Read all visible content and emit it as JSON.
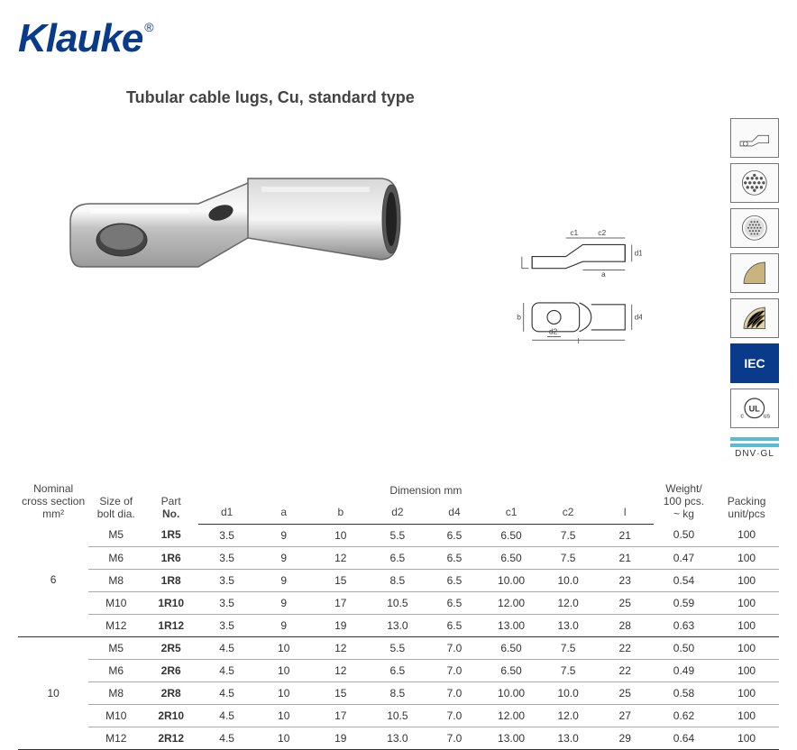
{
  "brand": {
    "name": "Klauke",
    "color": "#0a3a8a"
  },
  "title": "Tubular cable lugs, Cu, standard type",
  "schematics": {
    "side": {
      "labels": {
        "c1": "c1",
        "c2": "c2",
        "a": "a",
        "d1": "d1"
      }
    },
    "top": {
      "labels": {
        "b": "b",
        "d2": "d2",
        "l": "l",
        "d4": "d4"
      }
    }
  },
  "cert_icons": [
    {
      "name": "lug-outline-icon"
    },
    {
      "name": "conductor-stranded-icon"
    },
    {
      "name": "conductor-fine-icon"
    },
    {
      "name": "sector-solid-icon"
    },
    {
      "name": "sector-fine-icon"
    },
    {
      "name": "iec-icon",
      "text": "IEC"
    },
    {
      "name": "ul-icon",
      "left": "c",
      "right": "us",
      "center": "UL"
    },
    {
      "name": "dnv-gl-icon",
      "text": "DNV·GL"
    }
  ],
  "table": {
    "headers": {
      "nominal": [
        "Nominal",
        "cross section",
        "mm²"
      ],
      "bolt": [
        "Size of",
        "bolt dia."
      ],
      "part": [
        "Part",
        "No."
      ],
      "dim_group": "Dimension mm",
      "dims": [
        "d1",
        "a",
        "b",
        "d2",
        "d4",
        "c1",
        "c2",
        "l"
      ],
      "weight": [
        "Weight/",
        "100 pcs.",
        "~ kg"
      ],
      "packing": [
        "Packing",
        "unit/pcs"
      ]
    },
    "groups": [
      {
        "nominal": "6",
        "rows": [
          {
            "bolt": "M5",
            "part": "1R5",
            "d1": "3.5",
            "a": "9",
            "b": "10",
            "d2": "5.5",
            "d4": "6.5",
            "c1": "6.50",
            "c2": "7.5",
            "l": "21",
            "wt": "0.50",
            "pk": "100"
          },
          {
            "bolt": "M6",
            "part": "1R6",
            "d1": "3.5",
            "a": "9",
            "b": "12",
            "d2": "6.5",
            "d4": "6.5",
            "c1": "6.50",
            "c2": "7.5",
            "l": "21",
            "wt": "0.47",
            "pk": "100"
          },
          {
            "bolt": "M8",
            "part": "1R8",
            "d1": "3.5",
            "a": "9",
            "b": "15",
            "d2": "8.5",
            "d4": "6.5",
            "c1": "10.00",
            "c2": "10.0",
            "l": "23",
            "wt": "0.54",
            "pk": "100"
          },
          {
            "bolt": "M10",
            "part": "1R10",
            "d1": "3.5",
            "a": "9",
            "b": "17",
            "d2": "10.5",
            "d4": "6.5",
            "c1": "12.00",
            "c2": "12.0",
            "l": "25",
            "wt": "0.59",
            "pk": "100"
          },
          {
            "bolt": "M12",
            "part": "1R12",
            "d1": "3.5",
            "a": "9",
            "b": "19",
            "d2": "13.0",
            "d4": "6.5",
            "c1": "13.00",
            "c2": "13.0",
            "l": "28",
            "wt": "0.63",
            "pk": "100"
          }
        ]
      },
      {
        "nominal": "10",
        "rows": [
          {
            "bolt": "M5",
            "part": "2R5",
            "d1": "4.5",
            "a": "10",
            "b": "12",
            "d2": "5.5",
            "d4": "7.0",
            "c1": "6.50",
            "c2": "7.5",
            "l": "22",
            "wt": "0.50",
            "pk": "100"
          },
          {
            "bolt": "M6",
            "part": "2R6",
            "d1": "4.5",
            "a": "10",
            "b": "12",
            "d2": "6.5",
            "d4": "7.0",
            "c1": "6.50",
            "c2": "7.5",
            "l": "22",
            "wt": "0.49",
            "pk": "100"
          },
          {
            "bolt": "M8",
            "part": "2R8",
            "d1": "4.5",
            "a": "10",
            "b": "15",
            "d2": "8.5",
            "d4": "7.0",
            "c1": "10.00",
            "c2": "10.0",
            "l": "25",
            "wt": "0.58",
            "pk": "100"
          },
          {
            "bolt": "M10",
            "part": "2R10",
            "d1": "4.5",
            "a": "10",
            "b": "17",
            "d2": "10.5",
            "d4": "7.0",
            "c1": "12.00",
            "c2": "12.0",
            "l": "27",
            "wt": "0.62",
            "pk": "100"
          },
          {
            "bolt": "M12",
            "part": "2R12",
            "d1": "4.5",
            "a": "10",
            "b": "19",
            "d2": "13.0",
            "d4": "7.0",
            "c1": "13.00",
            "c2": "13.0",
            "l": "29",
            "wt": "0.64",
            "pk": "100"
          }
        ]
      }
    ]
  },
  "colors": {
    "text": "#333333",
    "brand": "#0a3a8a",
    "rule_heavy": "#333333",
    "rule_light": "#aaaaaa",
    "dnv_bar": "#5bbad5"
  }
}
